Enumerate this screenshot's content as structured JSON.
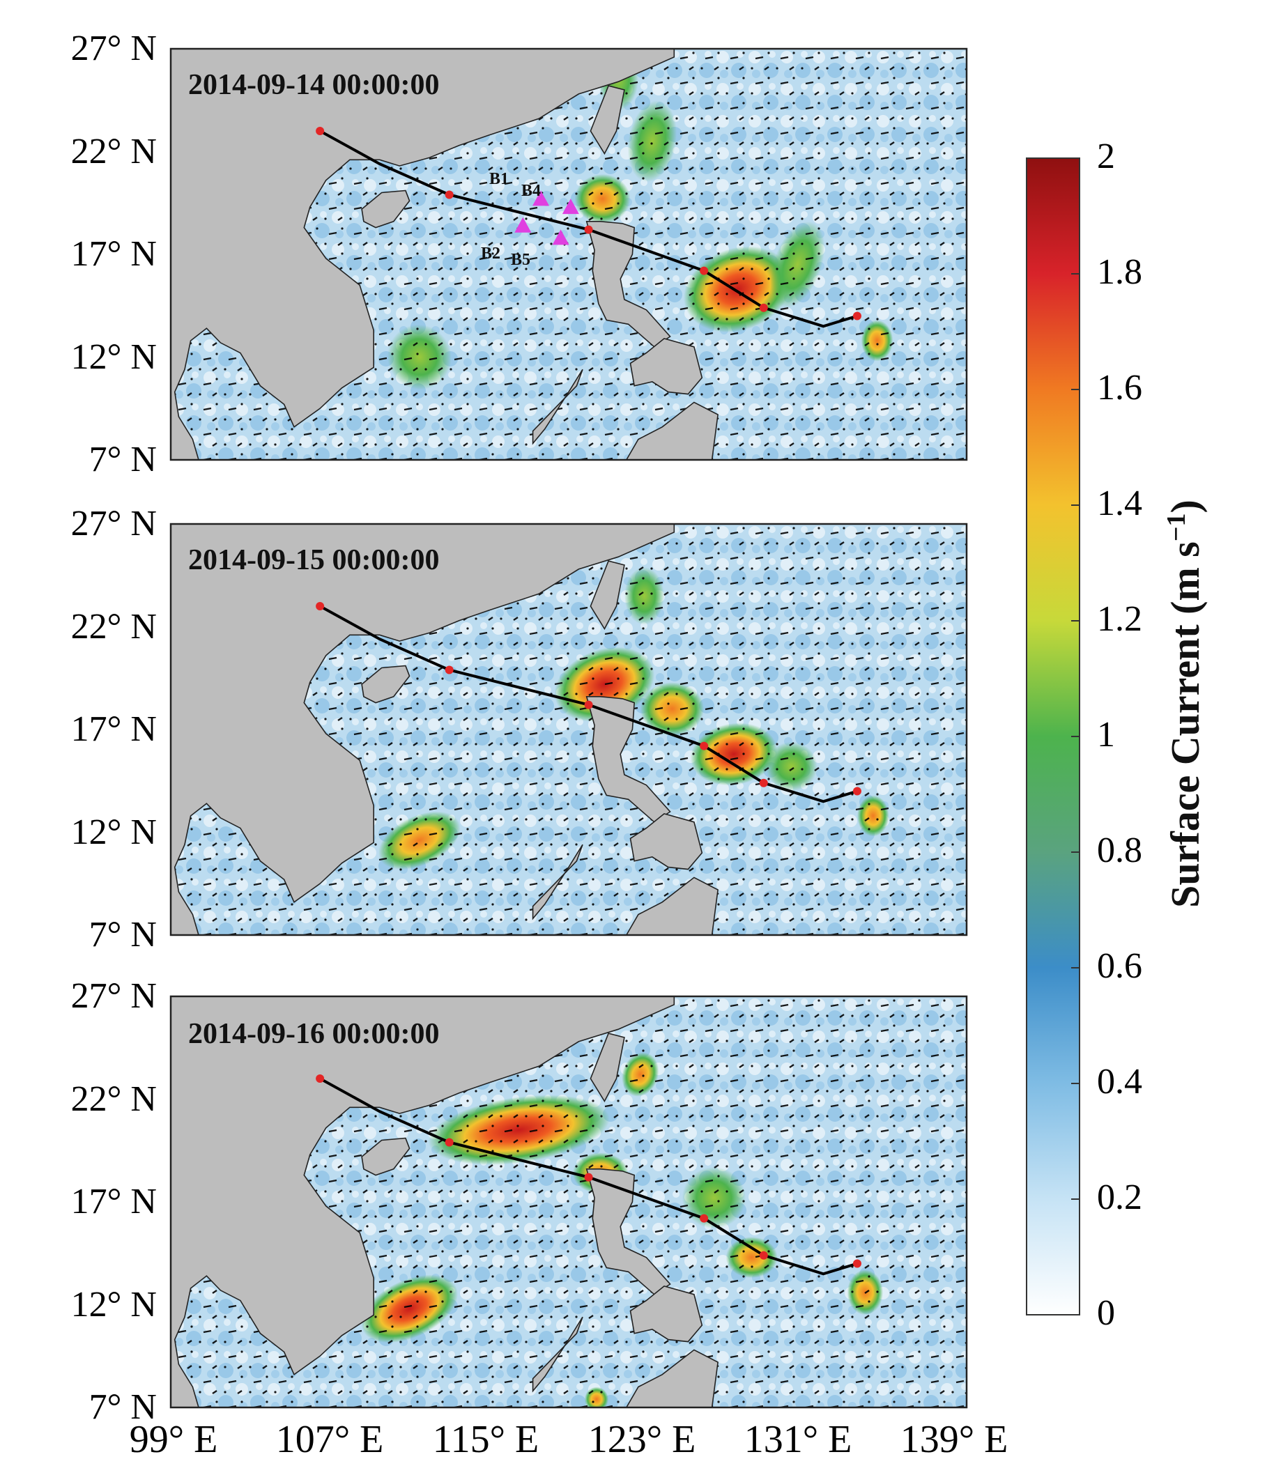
{
  "panels": [
    {
      "title": "2014-09-14 00:00:00"
    },
    {
      "title": "2014-09-15 00:00:00"
    },
    {
      "title": "2014-09-16 00:00:00"
    }
  ],
  "y_ticks": [
    "27° N",
    "22° N",
    "17° N",
    "12° N",
    "7° N"
  ],
  "x_ticks": [
    "99° E",
    "107° E",
    "115° E",
    "123° E",
    "131° E",
    "139° E"
  ],
  "colorbar": {
    "label": "Surface Current (m s",
    "label_exponent": "−1",
    "label_close": ")",
    "ticks": [
      "2",
      "1.8",
      "1.6",
      "1.4",
      "1.2",
      "1",
      "0.8",
      "0.6",
      "0.4",
      "0.2",
      "0"
    ],
    "range": [
      0,
      2
    ],
    "colors": [
      "#ffffff",
      "#c6e3f5",
      "#7fbce4",
      "#3c8dc8",
      "#5aa37f",
      "#4db34d",
      "#c7d93a",
      "#f3c22e",
      "#f07a22",
      "#d8232a",
      "#8f1010"
    ]
  },
  "buoys": [
    {
      "name": "B1"
    },
    {
      "name": "B2"
    },
    {
      "name": "B4"
    },
    {
      "name": "B5"
    }
  ],
  "typhoon_track": [
    {
      "lon": 133.5,
      "lat": 14.0
    },
    {
      "lon": 131.8,
      "lat": 13.5
    },
    {
      "lon": 128.8,
      "lat": 14.4
    },
    {
      "lon": 125.8,
      "lat": 16.2
    },
    {
      "lon": 120.0,
      "lat": 18.2
    },
    {
      "lon": 113.0,
      "lat": 19.9
    },
    {
      "lon": 109.5,
      "lat": 21.4
    },
    {
      "lon": 106.5,
      "lat": 23.0
    }
  ],
  "colors": {
    "land": "#bdbdbd",
    "ocean": "#bcdcf0",
    "track": "#000000",
    "track_dot": "#e32626",
    "buoy": "#e040e0"
  }
}
